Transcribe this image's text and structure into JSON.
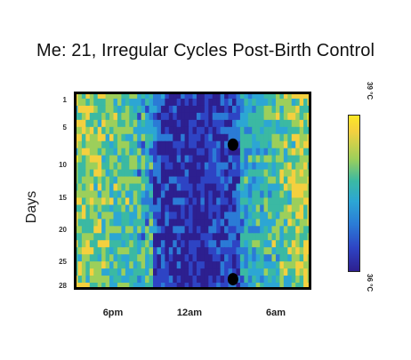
{
  "chart_data": {
    "type": "heatmap",
    "title": "Me: 21, Irregular Cycles Post-Birth Control",
    "ylabel": "Days",
    "xlabel": "",
    "y_tick_labels": [
      "1",
      "5",
      "10",
      "15",
      "20",
      "25",
      "28"
    ],
    "y_tick_values": [
      1,
      5,
      10,
      15,
      20,
      25,
      28
    ],
    "x_tick_labels": [
      "6pm",
      "12am",
      "6am"
    ],
    "n_days": 28,
    "colorbar": {
      "min_label": "36 °C",
      "max_label": "39 °C",
      "min": 36,
      "max": 39
    },
    "colormap": [
      "#2d1f8f",
      "#2e44c4",
      "#2b7bd6",
      "#2ca6d4",
      "#3bb9a3",
      "#9ccf5b",
      "#f4d03f",
      "#fde725"
    ],
    "markers": [
      {
        "day": 8,
        "time": "~3am"
      },
      {
        "day": 27,
        "time": "~3am"
      }
    ]
  }
}
